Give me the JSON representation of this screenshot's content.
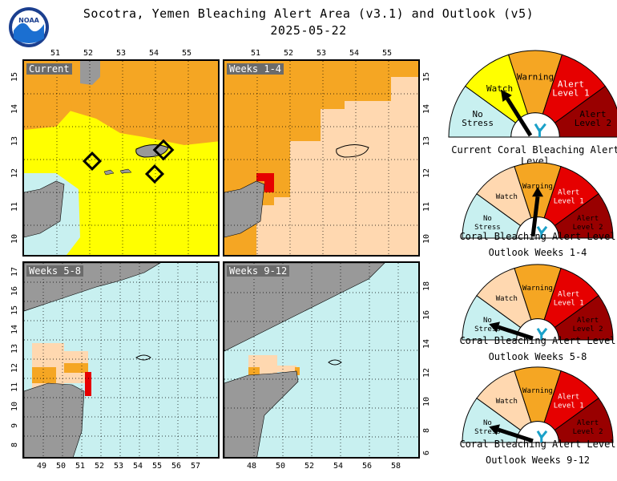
{
  "header": {
    "title_line1": "Socotra, Yemen Bleaching Alert Area (v3.1) and Outlook (v5)",
    "title_line2": "2025-05-22",
    "logo_text": "NOAA"
  },
  "colors": {
    "no_stress": "#c8f0f0",
    "watch": "#ffff00",
    "warning": "#f5a623",
    "alert1": "#e60000",
    "alert2": "#990000",
    "watch_outlook": "#ffd8b0",
    "land": "#999999"
  },
  "panels": {
    "current": {
      "label": "Current",
      "top_ticks": [
        "51",
        "52",
        "53",
        "54",
        "55"
      ],
      "left_ticks": [
        "15",
        "14",
        "13",
        "12",
        "11",
        "10"
      ]
    },
    "weeks_1_4": {
      "label": "Weeks 1-4",
      "top_ticks": [
        "51",
        "52",
        "53",
        "54",
        "55"
      ],
      "right_ticks": [
        "15",
        "14",
        "13",
        "12",
        "11",
        "10"
      ]
    },
    "weeks_5_8": {
      "label": "Weeks 5-8",
      "bottom_ticks": [
        "49",
        "50",
        "51",
        "52",
        "53",
        "54",
        "55",
        "56",
        "57"
      ],
      "left_ticks": [
        "17",
        "16",
        "15",
        "14",
        "13",
        "12",
        "11",
        "10",
        "9",
        "8"
      ]
    },
    "weeks_9_12": {
      "label": "Weeks 9-12",
      "bottom_ticks": [
        "48",
        "50",
        "52",
        "54",
        "56",
        "58"
      ],
      "right_ticks": [
        "18",
        "16",
        "14",
        "12",
        "10",
        "8",
        "6"
      ]
    }
  },
  "gauges": [
    {
      "caption1": "Current Coral Bleaching Alert Level",
      "caption2": "",
      "level": "Watch",
      "labels": {
        "no_stress": "No\nStress",
        "watch": "Watch",
        "warning": "Warning",
        "alert1": "Alert\nLevel 1",
        "alert2": "Alert\nLevel 2"
      }
    },
    {
      "caption1": "Coral Bleaching Alert Level",
      "caption2": "Outlook Weeks 1-4",
      "level": "Warning",
      "labels": {
        "no_stress": "No\nStress",
        "watch": "Watch",
        "warning": "Warning",
        "alert1": "Alert\nLevel 1",
        "alert2": "Alert\nLevel 2"
      }
    },
    {
      "caption1": "Coral Bleaching Alert Level",
      "caption2": "Outlook Weeks 5-8",
      "level": "No Stress",
      "labels": {
        "no_stress": "No\nStress",
        "watch": "Watch",
        "warning": "Warning",
        "alert1": "Alert\nLevel 1",
        "alert2": "Alert\nLevel 2"
      }
    },
    {
      "caption1": "Coral Bleaching Alert Level",
      "caption2": "Outlook Weeks 9-12",
      "level": "No Stress",
      "labels": {
        "no_stress": "No\nStress",
        "watch": "Watch",
        "warning": "Warning",
        "alert1": "Alert\nLevel 1",
        "alert2": "Alert\nLevel 2"
      }
    }
  ]
}
